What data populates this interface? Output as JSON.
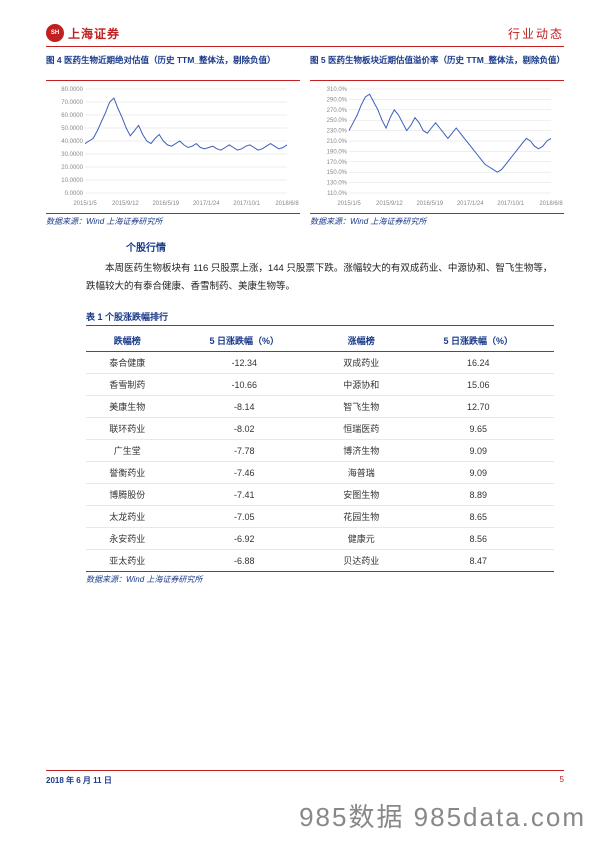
{
  "header": {
    "logo_text": "上海证券",
    "right_text": "行业动态"
  },
  "chart_left": {
    "title": "图 4 医药生物近期绝对估值（历史 TTM_整体法，剔除负值）",
    "source": "数据来源：Wind 上海证券研究所",
    "type": "line",
    "background_color": "#ffffff",
    "grid_color": "#dddddd",
    "line_color": "#3a5fbd",
    "title_color": "#1a3a8a",
    "ylim": [
      0,
      80000
    ],
    "ytick_step": 10000,
    "yticks": [
      "0.0000",
      "10.0000",
      "20.0000",
      "30.0000",
      "40.0000",
      "50.0000",
      "60.0000",
      "70.0000",
      "80.0000"
    ],
    "xticks": [
      "2015/1/5",
      "2015/9/12",
      "2016/5/19",
      "2017/1/24",
      "2017/10/1",
      "2018/6/8"
    ],
    "label_fontsize": 6,
    "line_width": 1,
    "values": [
      38000,
      40000,
      42000,
      48000,
      55000,
      62000,
      70000,
      73000,
      65000,
      58000,
      50000,
      44000,
      48000,
      52000,
      45000,
      40000,
      38000,
      42000,
      45000,
      40000,
      37000,
      36000,
      38000,
      40000,
      37000,
      35000,
      36000,
      38000,
      35000,
      34000,
      35000,
      36000,
      34000,
      33000,
      35000,
      37000,
      35000,
      33000,
      34000,
      36000,
      37000,
      35000,
      33000,
      34000,
      36000,
      38000,
      36000,
      34000,
      35000,
      37000
    ]
  },
  "chart_right": {
    "title": "图 5 医药生物板块近期估值溢价率（历史 TTM_整体法，剔除负值）",
    "source": "数据来源：Wind 上海证券研究所",
    "type": "line",
    "background_color": "#ffffff",
    "grid_color": "#dddddd",
    "line_color": "#3a5fbd",
    "title_color": "#1a3a8a",
    "ylim": [
      110,
      310
    ],
    "ytick_step": 20,
    "yticks": [
      "110.0%",
      "130.0%",
      "150.0%",
      "170.0%",
      "190.0%",
      "210.0%",
      "230.0%",
      "250.0%",
      "270.0%",
      "290.0%",
      "310.0%"
    ],
    "xticks": [
      "2015/1/5",
      "2015/9/12",
      "2016/5/19",
      "2017/1/24",
      "2017/10/1",
      "2018/6/8"
    ],
    "label_fontsize": 6,
    "line_width": 1,
    "values": [
      230,
      245,
      260,
      280,
      295,
      300,
      285,
      270,
      250,
      235,
      255,
      270,
      260,
      245,
      230,
      240,
      255,
      245,
      230,
      225,
      235,
      245,
      235,
      225,
      215,
      225,
      235,
      225,
      215,
      205,
      195,
      185,
      175,
      165,
      160,
      155,
      150,
      155,
      165,
      175,
      185,
      195,
      205,
      215,
      210,
      200,
      195,
      200,
      210,
      215
    ]
  },
  "section": {
    "title": "个股行情",
    "body": "本周医药生物板块有 116 只股票上涨，144 只股票下跌。涨幅较大的有双成药业、中源协和、智飞生物等，跌幅较大的有泰合健康、香雪制药、美康生物等。"
  },
  "table": {
    "title": "表 1 个股涨跌幅排行",
    "source": "数据来源：Wind 上海证券研究所",
    "columns": [
      "跌幅榜",
      "5 日涨跌幅（%）",
      "涨幅榜",
      "5 日涨跌幅（%）"
    ],
    "header_color": "#1a3a8a",
    "border_color": "#c02020",
    "rows": [
      [
        "泰合健康",
        "-12.34",
        "双成药业",
        "16.24"
      ],
      [
        "香雪制药",
        "-10.66",
        "中源协和",
        "15.06"
      ],
      [
        "美康生物",
        "-8.14",
        "智飞生物",
        "12.70"
      ],
      [
        "联环药业",
        "-8.02",
        "恒瑞医药",
        "9.65"
      ],
      [
        "广生堂",
        "-7.78",
        "博济生物",
        "9.09"
      ],
      [
        "誉衡药业",
        "-7.46",
        "海普瑞",
        "9.09"
      ],
      [
        "博腾股份",
        "-7.41",
        "安图生物",
        "8.89"
      ],
      [
        "太龙药业",
        "-7.05",
        "花园生物",
        "8.65"
      ],
      [
        "永安药业",
        "-6.92",
        "健康元",
        "8.56"
      ],
      [
        "亚太药业",
        "-6.88",
        "贝达药业",
        "8.47"
      ]
    ]
  },
  "footer": {
    "date": "2018 年 6 月 11 日",
    "page": "5"
  },
  "watermark": "985数据 985data.com"
}
